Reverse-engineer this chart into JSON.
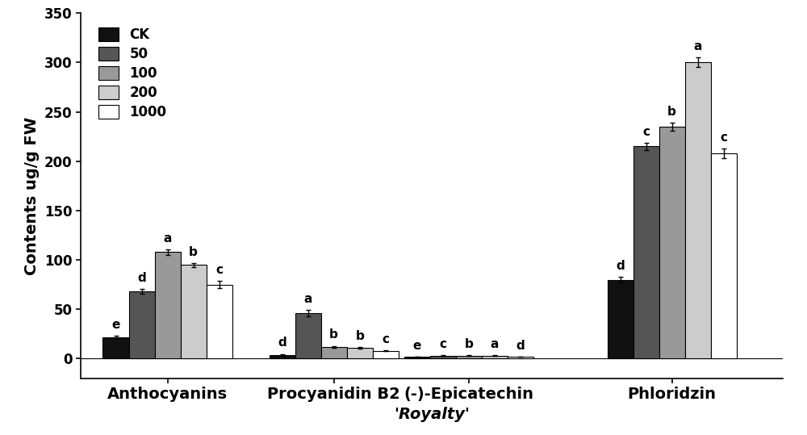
{
  "categories": [
    "Anthocyanins",
    "Procyanidin B2",
    "(-)-Epicatechin",
    "Phloridzin"
  ],
  "series_labels": [
    "CK",
    "50",
    "100",
    "200",
    "1000"
  ],
  "colors": [
    "#111111",
    "#555555",
    "#999999",
    "#cccccc",
    "#ffffff"
  ],
  "values": [
    [
      22,
      68,
      108,
      95,
      75
    ],
    [
      4,
      46,
      12,
      11,
      8
    ],
    [
      2,
      3,
      3,
      3,
      2
    ],
    [
      80,
      215,
      235,
      300,
      208
    ]
  ],
  "errors": [
    [
      1.5,
      2.5,
      3.0,
      2.0,
      3.5
    ],
    [
      0.8,
      3.5,
      1.0,
      1.0,
      0.6
    ],
    [
      0.3,
      0.4,
      0.4,
      0.3,
      0.3
    ],
    [
      3.0,
      3.5,
      4.0,
      5.0,
      5.0
    ]
  ],
  "sig_labels": [
    [
      "e",
      "d",
      "a",
      "b",
      "c"
    ],
    [
      "d",
      "a",
      "b",
      "b",
      "c"
    ],
    [
      "e",
      "c",
      "b",
      "a",
      "d"
    ],
    [
      "d",
      "c",
      "b",
      "a",
      "c"
    ]
  ],
  "ylabel": "Contents ug/g FW",
  "xlabel": "'Royalty'",
  "ylim": [
    -20,
    350
  ],
  "yticks": [
    0,
    50,
    100,
    150,
    200,
    250,
    300,
    350
  ],
  "bar_width": 0.14,
  "axis_fontsize": 14,
  "tick_fontsize": 12,
  "legend_fontsize": 12,
  "sig_fontsize": 11,
  "group_positions": [
    0.42,
    1.32,
    2.05,
    3.15
  ]
}
